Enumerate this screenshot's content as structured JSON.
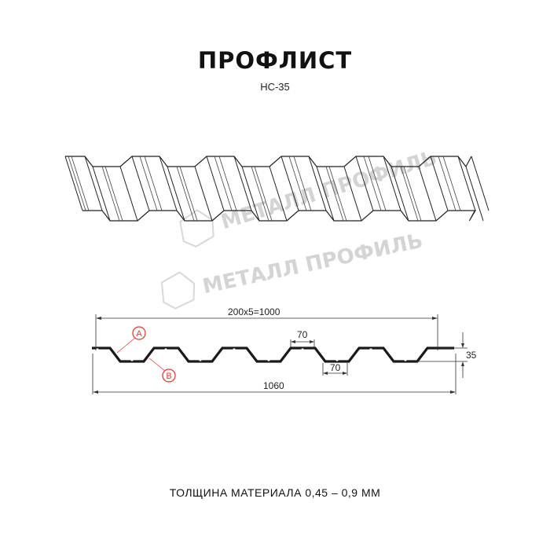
{
  "header": {
    "title": "ПРОФЛИСТ",
    "subtitle": "НС-35"
  },
  "watermark": {
    "text": "МЕТАЛЛ ПРОФИЛЬ"
  },
  "dimensions": {
    "pitch_total": "200x5=1000",
    "top_flat": "70",
    "bottom_flat": "70",
    "height": "35",
    "full_width": "1060"
  },
  "markers": [
    {
      "label": "A"
    },
    {
      "label": "B"
    }
  ],
  "footer": {
    "thickness": "ТОЛЩИНА МАТЕРИАЛА 0,45 – 0,9 ММ"
  },
  "colors": {
    "line": "#1a1a1a",
    "marker": "#e53935",
    "watermark": "#d4d4d4"
  }
}
